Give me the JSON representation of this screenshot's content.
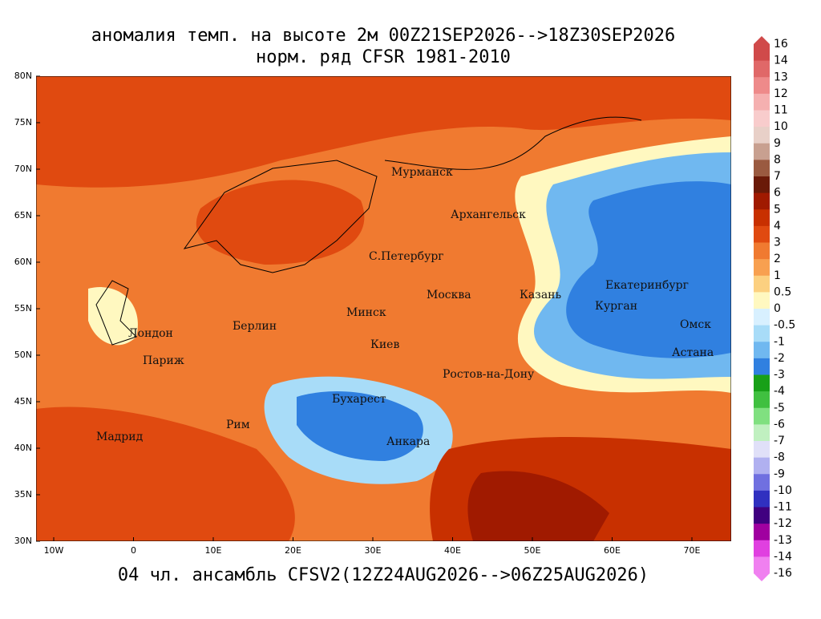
{
  "title": "аномалия темп. на высоте 2м 00Z21SEP2026-->18Z30SEP2026",
  "subtitle": "норм. ряд CFSR 1981-2010",
  "footer": "04 чл. ансамбль CFSV2(12Z24AUG2026-->06Z25AUG2026)",
  "lon_labels": [
    "10W",
    "0",
    "10E",
    "20E",
    "30E",
    "40E",
    "50E",
    "60E",
    "70E"
  ],
  "lat_labels": [
    "80N",
    "75N",
    "70N",
    "65N",
    "60N",
    "55N",
    "50N",
    "45N",
    "40N",
    "35N",
    "30N"
  ],
  "cities": [
    "Мурманск",
    "Архангельск",
    "С.Петербург",
    "Москва",
    "Казань",
    "Екатеринбург",
    "Курган",
    "Омск",
    "Астана",
    "Минск",
    "Берлин",
    "Лондон",
    "Париж",
    "Киев",
    "Ростов-на-Дону",
    "Бухарест",
    "Мадрид",
    "Рим",
    "Анкара"
  ],
  "colorbar": {
    "labels": [
      16,
      14,
      13,
      12,
      11,
      10,
      9,
      8,
      7,
      6,
      5,
      4,
      3,
      2,
      1,
      0.5,
      0,
      -0.5,
      -1,
      -2,
      -3,
      -4,
      -5,
      -6,
      -7,
      -8,
      -9,
      -10,
      -11,
      -12,
      -13,
      -14,
      -16
    ],
    "colors": [
      "#d04a4a",
      "#e06868",
      "#ee8a8a",
      "#f5b0b0",
      "#f8cccc",
      "#e8d0c8",
      "#c8a090",
      "#9a5a40",
      "#6a1a08",
      "#a01a00",
      "#c83000",
      "#e04a10",
      "#f07a30",
      "#f8a050",
      "#fcd080",
      "#fff8c0",
      "#d8f0ff",
      "#a8dcf8",
      "#70b8f0",
      "#3080e0",
      "#18a018",
      "#40c040",
      "#80e080",
      "#c0f0c0",
      "#e0e0f8",
      "#b0b0f0",
      "#7070e0",
      "#3030c0",
      "#400080",
      "#a000a0",
      "#e040e0",
      "#f080f0"
    ]
  }
}
